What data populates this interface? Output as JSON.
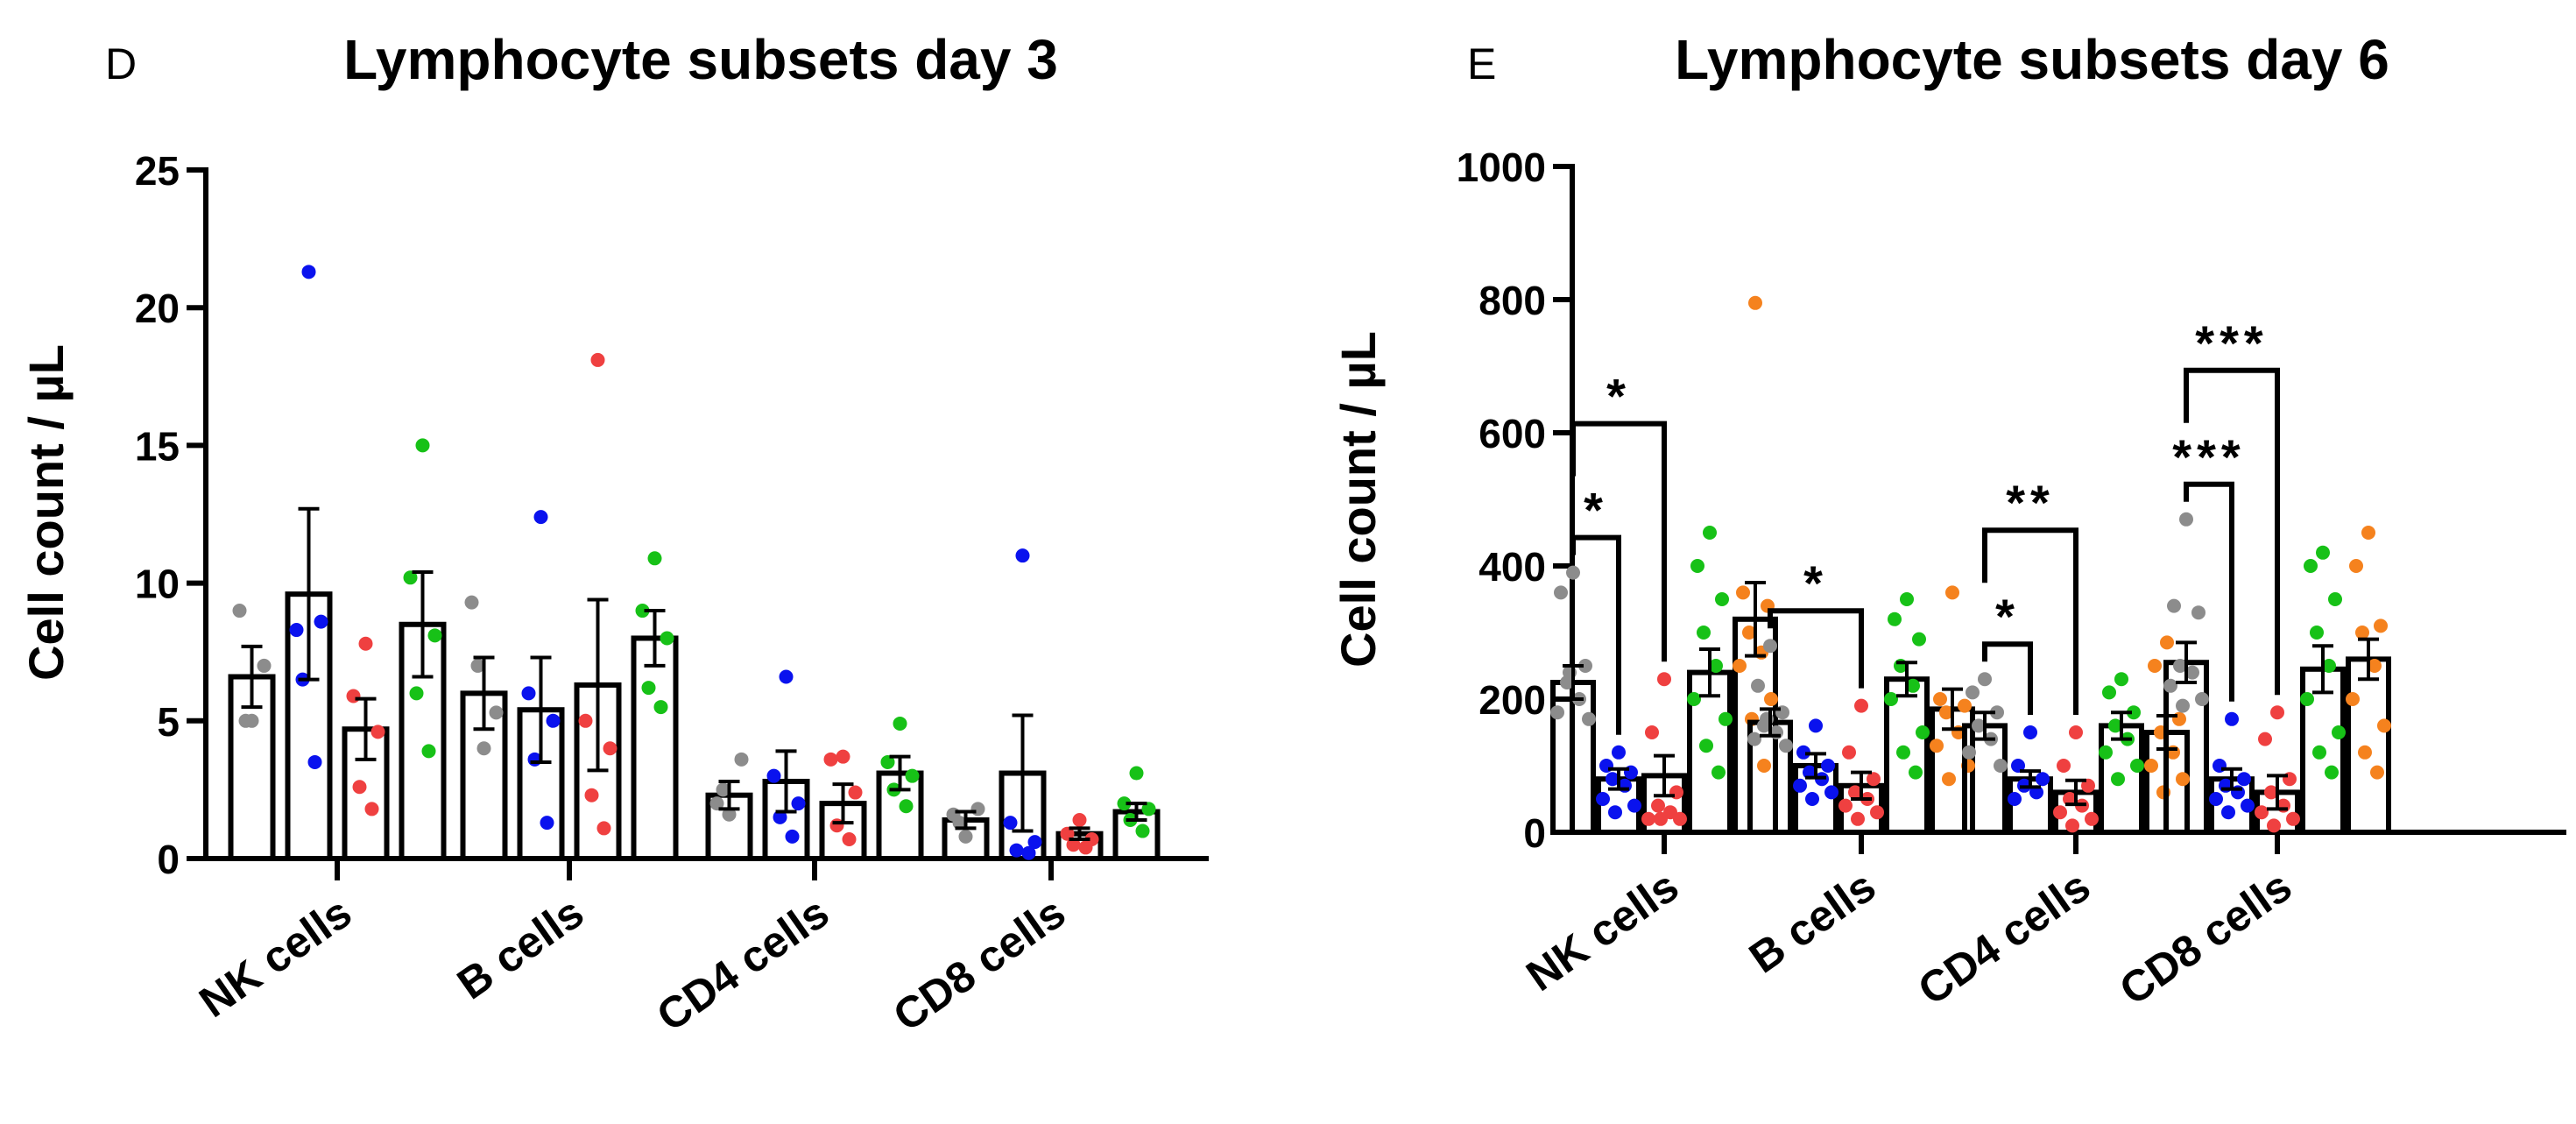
{
  "chart_data": [
    {
      "type": "bar",
      "panel_label": "D",
      "title": "Lymphocyte subsets day 3",
      "ylabel": "Cell count / µL",
      "xlabel": "",
      "ylim": [
        0,
        25
      ],
      "yticks": [
        0,
        5,
        10,
        15,
        20,
        25
      ],
      "categories": [
        "NK cells",
        "B cells",
        "CD4 cells",
        "CD8 cells"
      ],
      "series": [
        {
          "name": "group-gray",
          "color": "#8c8c8c",
          "means": [
            6.6,
            6.0,
            2.3,
            1.4
          ],
          "sem": [
            1.1,
            1.3,
            0.5,
            0.3
          ],
          "points": [
            [
              5.0,
              9.0,
              7.0,
              5.0
            ],
            [
              4.0,
              9.3,
              5.3,
              7.0
            ],
            [
              1.6,
              2.0,
              3.6,
              2.5
            ],
            [
              0.8,
              1.6,
              1.8,
              1.3
            ]
          ]
        },
        {
          "name": "group-blue",
          "color": "#0a12ee",
          "means": [
            9.6,
            5.4,
            2.8,
            3.1
          ],
          "sem": [
            3.1,
            1.9,
            1.1,
            2.1
          ],
          "points": [
            [
              21.3,
              8.3,
              8.6,
              6.5,
              3.5
            ],
            [
              12.4,
              6.0,
              5.0,
              3.6,
              1.3
            ],
            [
              6.6,
              3.0,
              2.0,
              1.5,
              0.8
            ],
            [
              11.0,
              1.3,
              0.6,
              0.3,
              0.2
            ]
          ]
        },
        {
          "name": "group-red",
          "color": "#ef4040",
          "means": [
            4.7,
            6.3,
            2.0,
            0.9
          ],
          "sem": [
            1.1,
            3.1,
            0.7,
            0.2
          ],
          "points": [
            [
              7.8,
              5.9,
              4.6,
              2.6,
              1.8
            ],
            [
              18.1,
              5.0,
              4.0,
              2.3,
              1.1
            ],
            [
              3.7,
              3.6,
              2.4,
              1.2,
              0.7
            ],
            [
              1.4,
              0.9,
              0.7,
              0.5,
              0.4
            ]
          ]
        },
        {
          "name": "group-green",
          "color": "#17c117",
          "means": [
            8.5,
            8.0,
            3.1,
            1.7
          ],
          "sem": [
            1.9,
            1.0,
            0.6,
            0.3
          ],
          "points": [
            [
              15.0,
              10.2,
              8.1,
              6.0,
              3.9
            ],
            [
              10.9,
              9.0,
              8.0,
              6.2,
              5.5
            ],
            [
              4.9,
              3.5,
              3.0,
              2.5,
              1.9
            ],
            [
              3.1,
              2.0,
              1.8,
              1.4,
              1.0
            ]
          ]
        }
      ],
      "significance": []
    },
    {
      "type": "bar",
      "panel_label": "E",
      "title": "Lymphocyte subsets day 6",
      "ylabel": "Cell count / µL",
      "xlabel": "",
      "ylim": [
        0,
        1000
      ],
      "yticks": [
        0,
        200,
        400,
        600,
        800,
        1000
      ],
      "categories": [
        "NK cells",
        "B cells",
        "CD4 cells",
        "CD8 cells"
      ],
      "series": [
        {
          "name": "group-gray",
          "color": "#8c8c8c",
          "means": [
            225,
            165,
            160,
            255
          ],
          "sem": [
            25,
            20,
            20,
            30
          ],
          "points": [
            [
              390,
              360,
              250,
              225,
              200,
              180,
              170,
              240
            ],
            [
              280,
              220,
              180,
              160,
              150,
              140,
              130,
              170
            ],
            [
              230,
              210,
              180,
              160,
              140,
              120,
              100
            ],
            [
              470,
              340,
              330,
              250,
              240,
              220,
              200,
              190
            ]
          ]
        },
        {
          "name": "group-blue",
          "color": "#0a12ee",
          "means": [
            80,
            100,
            80,
            80
          ],
          "sem": [
            15,
            18,
            12,
            15
          ],
          "points": [
            [
              120,
              100,
              90,
              80,
              70,
              50,
              40,
              30
            ],
            [
              160,
              120,
              100,
              90,
              80,
              70,
              60,
              50
            ],
            [
              150,
              100,
              80,
              70,
              60,
              50
            ],
            [
              170,
              100,
              80,
              70,
              60,
              50,
              40,
              30
            ]
          ]
        },
        {
          "name": "group-red",
          "color": "#ef4040",
          "means": [
            85,
            70,
            60,
            60
          ],
          "sem": [
            30,
            20,
            18,
            25
          ],
          "points": [
            [
              230,
              150,
              60,
              40,
              30,
              20,
              20,
              20
            ],
            [
              190,
              120,
              80,
              60,
              50,
              40,
              30,
              20
            ],
            [
              150,
              100,
              70,
              50,
              40,
              30,
              20,
              10
            ],
            [
              180,
              140,
              80,
              60,
              40,
              30,
              20,
              10
            ]
          ]
        },
        {
          "name": "group-green",
          "color": "#17c117",
          "means": [
            240,
            230,
            160,
            245
          ],
          "sem": [
            35,
            25,
            20,
            35
          ],
          "points": [
            [
              450,
              400,
              350,
              300,
              250,
              200,
              170,
              130,
              90
            ],
            [
              350,
              320,
              290,
              250,
              220,
              200,
              150,
              120,
              90
            ],
            [
              230,
              210,
              180,
              160,
              140,
              120,
              100,
              80
            ],
            [
              420,
              400,
              350,
              300,
              250,
              200,
              150,
              120,
              90
            ]
          ]
        },
        {
          "name": "group-orange",
          "color": "#f5821e",
          "means": [
            320,
            185,
            150,
            260
          ],
          "sem": [
            55,
            30,
            25,
            30
          ],
          "points": [
            [
              795,
              360,
              340,
              300,
              270,
              250,
              200,
              170,
              100
            ],
            [
              360,
              200,
              190,
              180,
              150,
              130,
              100,
              80
            ],
            [
              285,
              250,
              170,
              150,
              120,
              100,
              80,
              60
            ],
            [
              450,
              400,
              310,
              300,
              250,
              200,
              160,
              120,
              90
            ]
          ]
        }
      ],
      "significance": [
        {
          "category": 0,
          "from_series": 0,
          "to_series": 1,
          "label": "*"
        },
        {
          "category": 0,
          "from_series": 0,
          "to_series": 2,
          "label": "*"
        },
        {
          "category": 1,
          "from_series": 0,
          "to_series": 2,
          "label": "*"
        },
        {
          "category": 2,
          "from_series": 0,
          "to_series": 1,
          "label": "*"
        },
        {
          "category": 2,
          "from_series": 0,
          "to_series": 2,
          "label": "**"
        },
        {
          "category": 3,
          "from_series": 0,
          "to_series": 1,
          "label": "***"
        },
        {
          "category": 3,
          "from_series": 0,
          "to_series": 2,
          "label": "***"
        }
      ]
    }
  ]
}
